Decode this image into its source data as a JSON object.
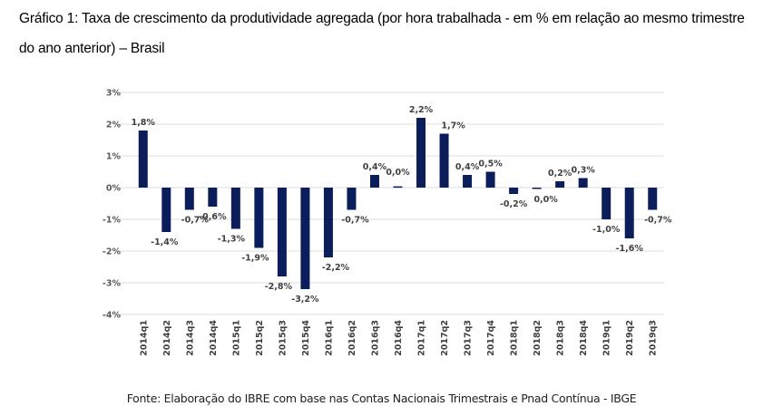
{
  "title": "Gráfico 1: Taxa de crescimento da produtividade agregada (por hora trabalhada - em % em relação ao mesmo trimestre do ano anterior) – Brasil",
  "source": "Fonte: Elaboração do IBRE com base nas Contas Nacionais Trimestrais e Pnad Contínua - IBGE",
  "chart_data": {
    "type": "bar",
    "title": "Taxa de crescimento da produtividade agregada (por hora trabalhada - em % em relação ao mesmo trimestre do ano anterior) – Brasil",
    "xlabel": "",
    "ylabel": "",
    "ylim": [
      -4,
      3
    ],
    "yticks": [
      3,
      2,
      1,
      0,
      -1,
      -2,
      -3,
      -4
    ],
    "ytick_labels": [
      "3%",
      "2%",
      "1%",
      "0%",
      "-1%",
      "-2%",
      "-3%",
      "-4%"
    ],
    "grid": true,
    "legend": "none",
    "bar_color": "#0b1e5b",
    "categories": [
      "2014q1",
      "2014q2",
      "2014q3",
      "2014q4",
      "2015q1",
      "2015q2",
      "2015q3",
      "2015q4",
      "2016q1",
      "2016q2",
      "2016q3",
      "2016q4",
      "2017q1",
      "2017q2",
      "2017q3",
      "2017q4",
      "2018q1",
      "2018q2",
      "2018q3",
      "2018q4",
      "2019q1",
      "2019q2",
      "2019q3"
    ],
    "values": [
      1.8,
      -1.4,
      -0.7,
      -0.6,
      -1.3,
      -1.9,
      -2.8,
      -3.2,
      -2.2,
      -0.7,
      0.4,
      0.04,
      2.2,
      1.7,
      0.4,
      0.5,
      -0.2,
      0.0,
      0.2,
      0.3,
      -1.0,
      -1.6,
      -0.7
    ],
    "data_labels": [
      "1,8%",
      "-1,4%",
      "-0,7%",
      "-0,6%",
      "-1,3%",
      "-1,9%",
      "-2,8%",
      "-3,2%",
      "-2,2%",
      "-0,7%",
      "0,4%",
      "0,0%",
      "2,2%",
      "1,7%",
      "0,4%",
      "0,5%",
      "-0,2%",
      "0,0%",
      "0,2%",
      "0,3%",
      "-1,0%",
      "-1,6%",
      "-0,7%"
    ]
  }
}
